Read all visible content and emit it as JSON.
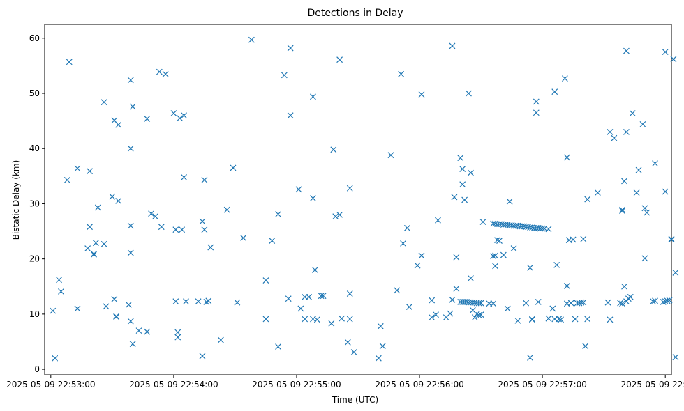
{
  "chart_data": {
    "type": "scatter",
    "title": "Detections in Delay",
    "xlabel": "Time (UTC)",
    "ylabel": "Bistatic Delay (km)",
    "marker": "x",
    "color": "#1f77b4",
    "grid": false,
    "xlim": [
      "2025-05-09 22:52:57",
      "2025-05-09 22:58:03"
    ],
    "ylim": [
      -1,
      62.5
    ],
    "xticks": [
      "2025-05-09 22:53:00",
      "2025-05-09 22:54:00",
      "2025-05-09 22:55:00",
      "2025-05-09 22:56:00",
      "2025-05-09 22:57:00",
      "2025-05-09 22:58:00"
    ],
    "yticks": [
      0,
      10,
      20,
      30,
      40,
      50,
      60
    ],
    "points": [
      [
        "22:53:01",
        10.6
      ],
      [
        "22:53:02",
        2.0
      ],
      [
        "22:53:04",
        16.2
      ],
      [
        "22:53:05",
        14.1
      ],
      [
        "22:53:08",
        34.3
      ],
      [
        "22:53:09",
        55.7
      ],
      [
        "22:53:13",
        11.0
      ],
      [
        "22:53:13",
        36.4
      ],
      [
        "22:53:18",
        21.9
      ],
      [
        "22:53:19",
        25.8
      ],
      [
        "22:53:19",
        35.9
      ],
      [
        "22:53:21",
        20.8
      ],
      [
        "22:53:21",
        20.9
      ],
      [
        "22:53:22",
        22.9
      ],
      [
        "22:53:23",
        29.3
      ],
      [
        "22:53:26",
        48.4
      ],
      [
        "22:53:26",
        22.7
      ],
      [
        "22:53:27",
        11.4
      ],
      [
        "22:53:30",
        31.3
      ],
      [
        "22:53:31",
        12.7
      ],
      [
        "22:53:31",
        45.1
      ],
      [
        "22:53:32",
        9.6
      ],
      [
        "22:53:32",
        9.5
      ],
      [
        "22:53:33",
        30.5
      ],
      [
        "22:53:33",
        44.3
      ],
      [
        "22:53:38",
        11.7
      ],
      [
        "22:53:39",
        52.4
      ],
      [
        "22:53:39",
        40.0
      ],
      [
        "22:53:39",
        26.0
      ],
      [
        "22:53:39",
        21.1
      ],
      [
        "22:53:39",
        8.7
      ],
      [
        "22:53:40",
        47.6
      ],
      [
        "22:53:40",
        4.6
      ],
      [
        "22:53:43",
        7.0
      ],
      [
        "22:53:47",
        45.4
      ],
      [
        "22:53:47",
        6.8
      ],
      [
        "22:53:49",
        28.2
      ],
      [
        "22:53:51",
        27.7
      ],
      [
        "22:53:53",
        53.9
      ],
      [
        "22:53:54",
        25.8
      ],
      [
        "22:53:56",
        53.5
      ],
      [
        "22:54:00",
        46.4
      ],
      [
        "22:54:01",
        12.3
      ],
      [
        "22:54:03",
        45.5
      ],
      [
        "22:54:04",
        25.3
      ],
      [
        "22:54:05",
        34.8
      ],
      [
        "22:54:05",
        46.0
      ],
      [
        "22:54:06",
        12.3
      ],
      [
        "22:54:02",
        5.8
      ],
      [
        "22:54:02",
        6.7
      ],
      [
        "22:54:01",
        25.3
      ],
      [
        "22:54:12",
        12.3
      ],
      [
        "22:54:14",
        2.4
      ],
      [
        "22:54:14",
        26.8
      ],
      [
        "22:54:15",
        34.3
      ],
      [
        "22:54:15",
        25.3
      ],
      [
        "22:54:16",
        12.2
      ],
      [
        "22:54:17",
        12.4
      ],
      [
        "22:54:18",
        22.1
      ],
      [
        "22:54:23",
        5.3
      ],
      [
        "22:54:26",
        28.9
      ],
      [
        "22:54:29",
        36.5
      ],
      [
        "22:54:31",
        12.1
      ],
      [
        "22:54:34",
        23.8
      ],
      [
        "22:54:38",
        59.7
      ],
      [
        "22:54:45",
        9.1
      ],
      [
        "22:54:45",
        16.1
      ],
      [
        "22:54:48",
        23.3
      ],
      [
        "22:54:51",
        4.1
      ],
      [
        "22:54:51",
        28.1
      ],
      [
        "22:54:54",
        53.3
      ],
      [
        "22:54:56",
        12.8
      ],
      [
        "22:54:57",
        46.0
      ],
      [
        "22:54:57",
        58.2
      ],
      [
        "22:55:01",
        32.6
      ],
      [
        "22:55:02",
        11.0
      ],
      [
        "22:55:04",
        13.1
      ],
      [
        "22:55:04",
        9.1
      ],
      [
        "22:55:06",
        13.1
      ],
      [
        "22:55:08",
        9.1
      ],
      [
        "22:55:08",
        49.4
      ],
      [
        "22:55:08",
        31.0
      ],
      [
        "22:55:09",
        18.0
      ],
      [
        "22:55:10",
        9.0
      ],
      [
        "22:55:12",
        13.3
      ],
      [
        "22:55:13",
        13.3
      ],
      [
        "22:55:17",
        8.3
      ],
      [
        "22:55:18",
        39.8
      ],
      [
        "22:55:19",
        27.7
      ],
      [
        "22:55:21",
        56.1
      ],
      [
        "22:55:21",
        28.0
      ],
      [
        "22:55:22",
        9.2
      ],
      [
        "22:55:25",
        4.9
      ],
      [
        "22:55:26",
        9.1
      ],
      [
        "22:55:26",
        13.7
      ],
      [
        "22:55:26",
        32.8
      ],
      [
        "22:55:28",
        3.1
      ],
      [
        "22:55:40",
        2.0
      ],
      [
        "22:55:41",
        7.8
      ],
      [
        "22:55:42",
        4.2
      ],
      [
        "22:55:46",
        38.8
      ],
      [
        "22:55:49",
        14.3
      ],
      [
        "22:55:51",
        53.5
      ],
      [
        "22:55:52",
        22.8
      ],
      [
        "22:55:54",
        25.6
      ],
      [
        "22:55:55",
        11.3
      ],
      [
        "22:55:59",
        18.8
      ],
      [
        "22:56:01",
        20.6
      ],
      [
        "22:56:01",
        49.8
      ],
      [
        "22:56:06",
        9.4
      ],
      [
        "22:56:06",
        12.5
      ],
      [
        "22:56:08",
        9.9
      ],
      [
        "22:56:09",
        27.0
      ],
      [
        "22:56:13",
        9.4
      ],
      [
        "22:56:15",
        10.1
      ],
      [
        "22:56:16",
        12.6
      ],
      [
        "22:56:16",
        58.6
      ],
      [
        "22:56:17",
        31.2
      ],
      [
        "22:56:18",
        14.6
      ],
      [
        "22:56:18",
        20.3
      ],
      [
        "22:56:20",
        38.3
      ],
      [
        "22:56:21",
        36.3
      ],
      [
        "22:56:21",
        33.5
      ],
      [
        "22:56:22",
        30.7
      ],
      [
        "22:56:24",
        50.0
      ],
      [
        "22:56:25",
        16.5
      ],
      [
        "22:56:25",
        35.6
      ],
      [
        "22:56:26",
        10.7
      ],
      [
        "22:56:27",
        9.4
      ],
      [
        "22:56:28",
        10.0
      ],
      [
        "22:56:29",
        9.8
      ],
      [
        "22:56:30",
        9.9
      ],
      [
        "22:56:31",
        26.7
      ],
      [
        "22:56:20",
        12.2
      ],
      [
        "22:56:21",
        12.2
      ],
      [
        "22:56:22",
        12.2
      ],
      [
        "22:56:23",
        12.2
      ],
      [
        "22:56:24",
        12.1
      ],
      [
        "22:56:25",
        12.1
      ],
      [
        "22:56:26",
        12.1
      ],
      [
        "22:56:27",
        12.1
      ],
      [
        "22:56:28",
        12.0
      ],
      [
        "22:56:29",
        12.0
      ],
      [
        "22:56:30",
        12.0
      ],
      [
        "22:56:34",
        11.9
      ],
      [
        "22:56:36",
        11.9
      ],
      [
        "22:56:36",
        20.5
      ],
      [
        "22:56:37",
        18.7
      ],
      [
        "22:56:37",
        20.6
      ],
      [
        "22:56:38",
        23.4
      ],
      [
        "22:56:39",
        23.3
      ],
      [
        "22:56:41",
        20.7
      ],
      [
        "22:56:43",
        11.0
      ],
      [
        "22:56:44",
        30.4
      ],
      [
        "22:56:46",
        21.9
      ],
      [
        "22:56:48",
        8.8
      ],
      [
        "22:56:52",
        12.0
      ],
      [
        "22:56:54",
        2.1
      ],
      [
        "22:56:54",
        18.4
      ],
      [
        "22:56:55",
        9.1
      ],
      [
        "22:56:55",
        9.0
      ],
      [
        "22:56:57",
        48.5
      ],
      [
        "22:56:57",
        46.5
      ],
      [
        "22:56:58",
        12.2
      ],
      [
        "22:56:36",
        26.4
      ],
      [
        "22:56:37",
        26.4
      ],
      [
        "22:56:38",
        26.3
      ],
      [
        "22:56:39",
        26.3
      ],
      [
        "22:56:40",
        26.3
      ],
      [
        "22:56:41",
        26.2
      ],
      [
        "22:56:42",
        26.2
      ],
      [
        "22:56:43",
        26.2
      ],
      [
        "22:56:44",
        26.1
      ],
      [
        "22:56:45",
        26.1
      ],
      [
        "22:56:46",
        26.0
      ],
      [
        "22:56:47",
        26.0
      ],
      [
        "22:56:48",
        26.0
      ],
      [
        "22:56:49",
        25.9
      ],
      [
        "22:56:50",
        25.9
      ],
      [
        "22:56:51",
        25.9
      ],
      [
        "22:56:52",
        25.8
      ],
      [
        "22:56:53",
        25.8
      ],
      [
        "22:56:54",
        25.7
      ],
      [
        "22:56:55",
        25.7
      ],
      [
        "22:56:56",
        25.6
      ],
      [
        "22:56:57",
        25.6
      ],
      [
        "22:56:58",
        25.6
      ],
      [
        "22:56:59",
        25.5
      ],
      [
        "22:57:00",
        25.5
      ],
      [
        "22:57:01",
        25.5
      ],
      [
        "22:57:03",
        25.4
      ],
      [
        "22:57:03",
        9.2
      ],
      [
        "22:57:05",
        11.0
      ],
      [
        "22:57:06",
        9.1
      ],
      [
        "22:57:06",
        50.3
      ],
      [
        "22:57:07",
        18.9
      ],
      [
        "22:57:08",
        9.1
      ],
      [
        "22:57:09",
        9.0
      ],
      [
        "22:57:11",
        52.7
      ],
      [
        "22:57:12",
        38.4
      ],
      [
        "22:57:12",
        15.1
      ],
      [
        "22:57:12",
        11.9
      ],
      [
        "22:57:13",
        23.4
      ],
      [
        "22:57:14",
        12.0
      ],
      [
        "22:57:15",
        23.5
      ],
      [
        "22:57:16",
        9.1
      ],
      [
        "22:57:17",
        12.0
      ],
      [
        "22:57:18",
        12.0
      ],
      [
        "22:57:19",
        12.1
      ],
      [
        "22:57:20",
        12.1
      ],
      [
        "22:57:20",
        23.6
      ],
      [
        "22:57:21",
        4.2
      ],
      [
        "22:57:22",
        30.8
      ],
      [
        "22:57:22",
        9.1
      ],
      [
        "22:57:27",
        32.0
      ],
      [
        "22:57:32",
        12.1
      ],
      [
        "22:57:33",
        43.0
      ],
      [
        "22:57:33",
        9.0
      ],
      [
        "22:57:35",
        41.9
      ],
      [
        "22:57:38",
        12.0
      ],
      [
        "22:57:39",
        11.9
      ],
      [
        "22:57:39",
        28.9
      ],
      [
        "22:57:39",
        28.7
      ],
      [
        "22:57:40",
        34.1
      ],
      [
        "22:57:40",
        15.0
      ],
      [
        "22:57:41",
        57.7
      ],
      [
        "22:57:41",
        43.0
      ],
      [
        "22:57:41",
        12.3
      ],
      [
        "22:57:42",
        12.8
      ],
      [
        "22:57:43",
        13.1
      ],
      [
        "22:57:44",
        46.4
      ],
      [
        "22:57:46",
        32.0
      ],
      [
        "22:57:47",
        36.1
      ],
      [
        "22:57:49",
        44.4
      ],
      [
        "22:57:50",
        29.2
      ],
      [
        "22:57:50",
        20.1
      ],
      [
        "22:57:51",
        28.4
      ],
      [
        "22:57:54",
        12.3
      ],
      [
        "22:57:55",
        37.3
      ],
      [
        "22:57:55",
        12.4
      ],
      [
        "22:57:59",
        12.2
      ],
      [
        "22:58:00",
        12.3
      ],
      [
        "22:58:00",
        57.5
      ],
      [
        "22:58:00",
        32.2
      ],
      [
        "22:58:01",
        12.4
      ],
      [
        "22:58:02",
        12.5
      ],
      [
        "22:58:03",
        23.6
      ],
      [
        "22:58:03",
        23.5
      ],
      [
        "22:58:04",
        56.2
      ],
      [
        "22:58:05",
        17.5
      ],
      [
        "22:58:05",
        2.2
      ]
    ]
  }
}
